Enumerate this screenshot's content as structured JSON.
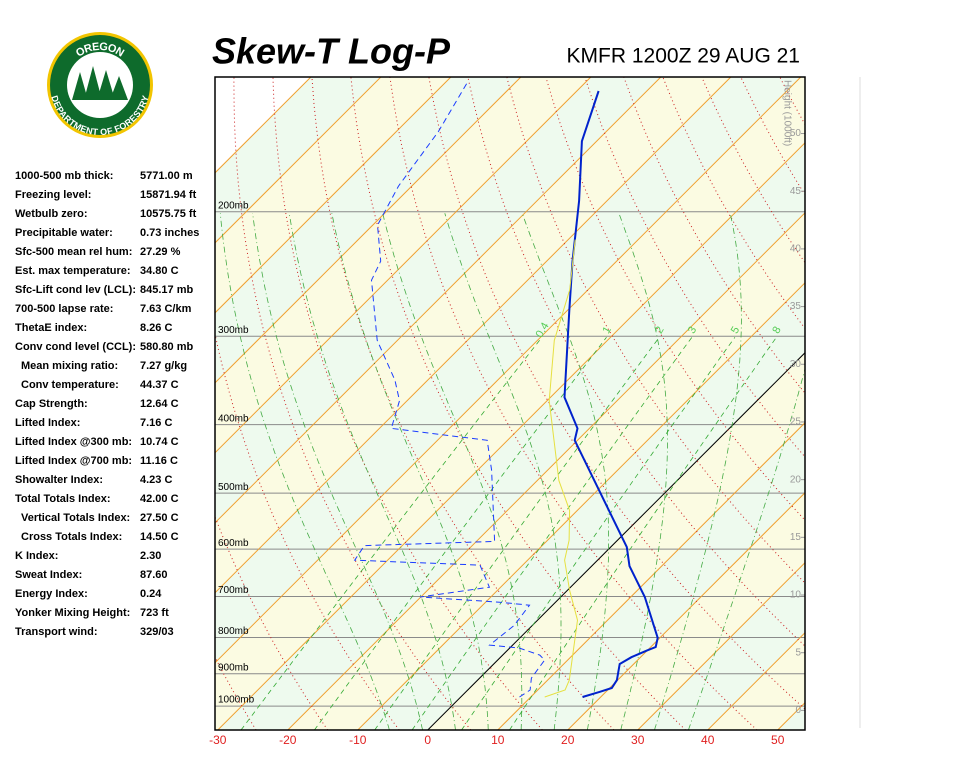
{
  "header": {
    "title": "Skew-T Log-P",
    "station": "KMFR 1200Z 29 AUG 21"
  },
  "logo": {
    "top": "OREGON",
    "bottom": "DEPARTMENT OF FORESTRY"
  },
  "stats": [
    {
      "label": "1000-500 mb thick:",
      "value": "5771.00 m"
    },
    {
      "label": "Freezing level:",
      "value": "15871.94 ft"
    },
    {
      "label": "Wetbulb zero:",
      "value": "10575.75 ft"
    },
    {
      "label": "Precipitable water:",
      "value": "0.73 inches"
    },
    {
      "label": "Sfc-500 mean rel hum:",
      "value": "27.29 %"
    },
    {
      "label": "Est. max temperature:",
      "value": "34.80 C"
    },
    {
      "label": "Sfc-Lift cond lev (LCL):",
      "value": "845.17 mb"
    },
    {
      "label": "700-500 lapse rate:",
      "value": "7.63 C/km"
    },
    {
      "label": "ThetaE index:",
      "value": "8.26 C"
    },
    {
      "label": "Conv cond level (CCL):",
      "value": "580.80 mb"
    },
    {
      "label": "Mean mixing ratio:",
      "value": "7.27 g/kg",
      "indent": true
    },
    {
      "label": "Conv temperature:",
      "value": "44.37 C",
      "indent": true
    },
    {
      "label": "Cap Strength:",
      "value": "12.64 C"
    },
    {
      "label": "Lifted Index:",
      "value": "7.16 C"
    },
    {
      "label": "Lifted Index @300 mb:",
      "value": "10.74 C"
    },
    {
      "label": "Lifted Index @700 mb:",
      "value": "11.16 C"
    },
    {
      "label": "Showalter Index:",
      "value": "4.23 C"
    },
    {
      "label": "Total Totals Index:",
      "value": "42.00 C"
    },
    {
      "label": "Vertical Totals Index:",
      "value": "27.50 C",
      "indent": true
    },
    {
      "label": "Cross Totals Index:",
      "value": "14.50 C",
      "indent": true
    },
    {
      "label": "K Index:",
      "value": "2.30"
    },
    {
      "label": "Sweat Index:",
      "value": "87.60"
    },
    {
      "label": "Energy Index:",
      "value": "0.24"
    },
    {
      "label": "Yonker Mixing Height:",
      "value": "723 ft"
    },
    {
      "label": "Transport wind:",
      "value": "329/03"
    }
  ],
  "chart_data": {
    "type": "skewt",
    "xlim": [
      -30.4,
      53.9
    ],
    "xticks": [
      -30,
      -20,
      -10,
      0,
      10,
      20,
      30,
      40,
      50
    ],
    "ylim": [
      1081,
      129
    ],
    "yticks": [
      {
        "value": 200,
        "label": "200mb"
      },
      {
        "value": 300,
        "label": "300mb"
      },
      {
        "value": 400,
        "label": "400mb"
      },
      {
        "value": 500,
        "label": "500mb"
      },
      {
        "value": 600,
        "label": "600mb"
      },
      {
        "value": 700,
        "label": "700mb"
      },
      {
        "value": 800,
        "label": "800mb"
      },
      {
        "value": 900,
        "label": "900mb"
      },
      {
        "value": 1000,
        "label": "1000mb"
      }
    ],
    "y2label": "Height (1000ft)",
    "y2lim": [
      -1.7,
      54.9
    ],
    "y2ticks": [
      0,
      5,
      10,
      15,
      20,
      25,
      30,
      35,
      40,
      45,
      50
    ],
    "isotherms": [
      -110,
      -100,
      -90,
      -80,
      -70,
      -60,
      -50,
      -40,
      -30,
      -20,
      -10,
      0,
      10,
      20,
      30,
      40,
      50
    ],
    "dry_adiabats": [
      -30,
      -20,
      -10,
      0,
      10,
      20,
      30,
      40,
      50,
      60,
      70,
      80,
      90,
      100,
      110,
      120,
      130,
      140,
      150
    ],
    "moist_adiabats": [
      -10,
      -5,
      0,
      5,
      10,
      15,
      20,
      25,
      30,
      35
    ],
    "mixing_ratios": [
      0.4,
      1,
      2,
      3,
      5,
      8
    ],
    "mixing_top": 300,
    "series": [
      {
        "color": "#0022cc",
        "dash": false,
        "pressure": [
          971,
          955,
          943,
          919,
          872,
          853,
          834,
          825,
          801,
          701,
          634,
          596,
          421,
          405,
          366,
          276,
          235,
          193,
          159,
          135
        ],
        "temperature": [
          17.4,
          19.1,
          20.3,
          19.9,
          18.0,
          18.7,
          20.0,
          20.7,
          19.7,
          12.0,
          5.4,
          2.3,
          -20.4,
          -21.7,
          -28.0,
          -39.7,
          -46.3,
          -54.0,
          -62.1,
          -66.9
        ]
      },
      {
        "color": "#1a3cff",
        "dash": true,
        "pressure": [
          971,
          949,
          913,
          861,
          847,
          828,
          820,
          769,
          720,
          713,
          701,
          679,
          632,
          622,
          593,
          585,
          464,
          421,
          405,
          370,
          346,
          304,
          250,
          235,
          209,
          184,
          154,
          131
        ],
        "temperature": [
          8.4,
          8.9,
          7.4,
          6.7,
          5.3,
          1.4,
          -3.3,
          -2.6,
          -3.3,
          -8.0,
          -20.1,
          -11.6,
          -16.1,
          -34.7,
          -35.4,
          -17.4,
          -28.0,
          -32.9,
          -48.3,
          -51.1,
          -54.7,
          -62.9,
          -72.3,
          -73.7,
          -79.3,
          -81.9,
          -84.0,
          -86.9
        ]
      },
      {
        "color": "#e6e040",
        "dash": false,
        "pressure": [
          971,
          949,
          919,
          756,
          686,
          622,
          583,
          529,
          480,
          370,
          304,
          258,
          219
        ],
        "temperature": [
          12.0,
          13.9,
          13.1,
          5.7,
          0.3,
          -4.7,
          -6.9,
          -11.1,
          -16.9,
          -29.7,
          -37.6,
          -42.6,
          -49.0
        ]
      }
    ]
  }
}
